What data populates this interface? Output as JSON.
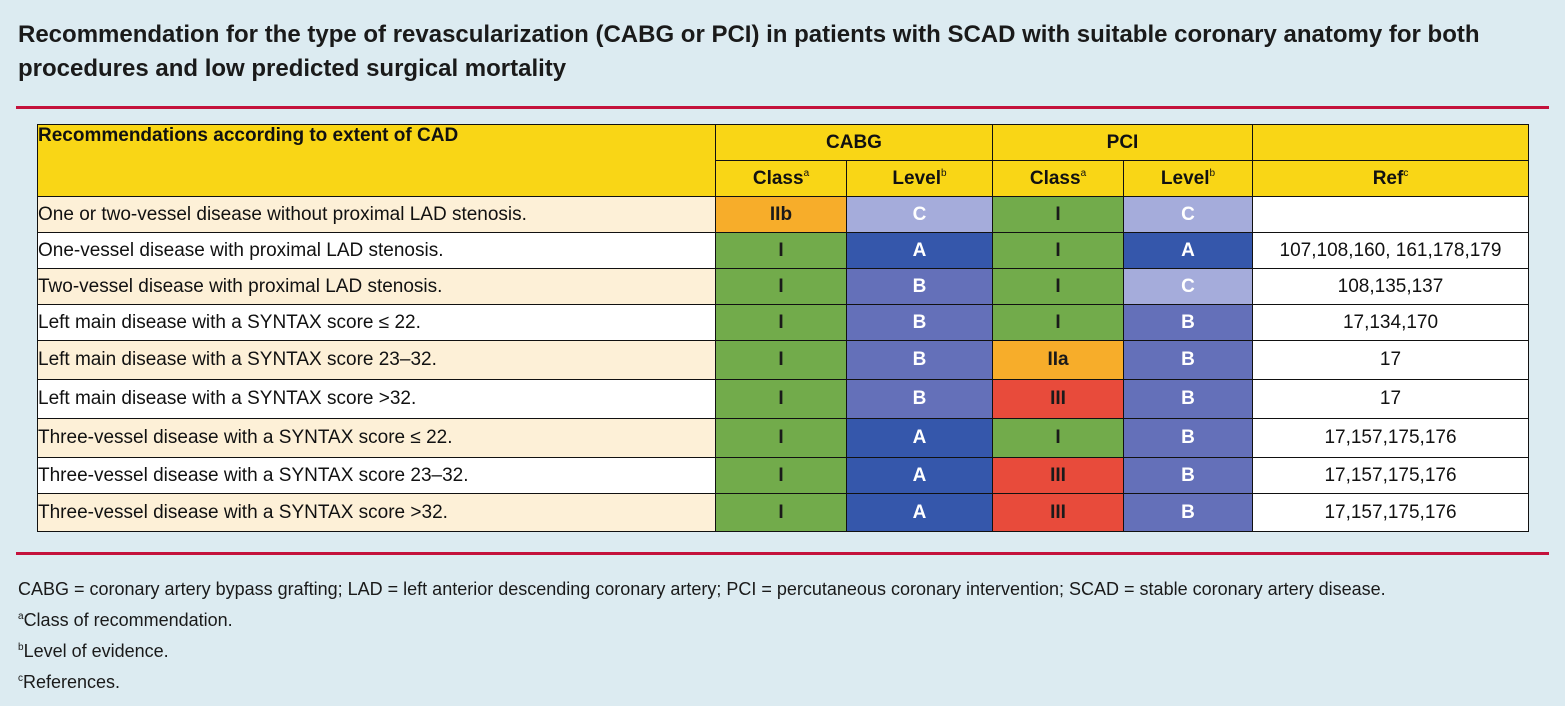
{
  "title": "Recommendation for the type of revascularization (CABG or PCI) in patients with SCAD with suitable coronary anatomy for both procedures and low predicted surgical mortality",
  "colors": {
    "header": "#f9d616",
    "class_I": "#72ab4b",
    "class_IIa": "#f7ad2a",
    "class_IIb": "#f7ad2a",
    "class_III": "#e84b3b",
    "level_A": "#3557ab",
    "level_B": "#6470b9",
    "level_C": "#a5acdb",
    "accent_rule": "#c4123c",
    "row_tint": "#fdf0d7"
  },
  "table": {
    "corner_header": "Recommendations according to extent of CAD",
    "groups": [
      "CABG",
      "PCI"
    ],
    "sub_headers": {
      "class": "Class",
      "class_sup": "a",
      "level": "Level",
      "level_sup": "b",
      "ref": "Ref",
      "ref_sup": "c"
    },
    "rows": [
      {
        "label": "One or two-vessel disease without  proximal  LAD stenosis.",
        "cabg_class": "IIb",
        "cabg_level": "C",
        "pci_class": "I",
        "pci_level": "C",
        "ref": ""
      },
      {
        "label": "One-vessel disease with proximal LAD stenosis.",
        "cabg_class": "I",
        "cabg_level": "A",
        "pci_class": "I",
        "pci_level": "A",
        "ref": "107,108,160, 161,178,179"
      },
      {
        "label": "Two-vessel disease with proximal LAD stenosis.",
        "cabg_class": "I",
        "cabg_level": "B",
        "pci_class": "I",
        "pci_level": "C",
        "ref": "108,135,137"
      },
      {
        "label": "Left main disease with a SYNTAX score ≤ 22.",
        "cabg_class": "I",
        "cabg_level": "B",
        "pci_class": "I",
        "pci_level": "B",
        "ref": "17,134,170"
      },
      {
        "label": "Left main disease with a SYNTAX score 23–32.",
        "cabg_class": "I",
        "cabg_level": "B",
        "pci_class": "IIa",
        "pci_level": "B",
        "ref": "17"
      },
      {
        "label": "Left main disease with a SYNTAX score >32.",
        "cabg_class": "I",
        "cabg_level": "B",
        "pci_class": "III",
        "pci_level": "B",
        "ref": "17"
      },
      {
        "label": "Three-vessel disease with a SYNTAX score ≤ 22.",
        "cabg_class": "I",
        "cabg_level": "A",
        "pci_class": "I",
        "pci_level": "B",
        "ref": "17,157,175,176"
      },
      {
        "label": "Three-vessel disease with a SYNTAX score 23–32.",
        "cabg_class": "I",
        "cabg_level": "A",
        "pci_class": "III",
        "pci_level": "B",
        "ref": "17,157,175,176"
      },
      {
        "label": "Three-vessel disease with a SYNTAX score >32.",
        "cabg_class": "I",
        "cabg_level": "A",
        "pci_class": "III",
        "pci_level": "B",
        "ref": "17,157,175,176"
      }
    ]
  },
  "footnotes": {
    "abbreviations": "CABG = coronary artery bypass grafting; LAD = left anterior descending coronary artery; PCI = percutaneous coronary intervention; SCAD = stable coronary artery disease.",
    "a_mark": "a",
    "a_text": "Class of recommendation.",
    "b_mark": "b",
    "b_text": "Level of evidence.",
    "c_mark": "c",
    "c_text": "References."
  }
}
